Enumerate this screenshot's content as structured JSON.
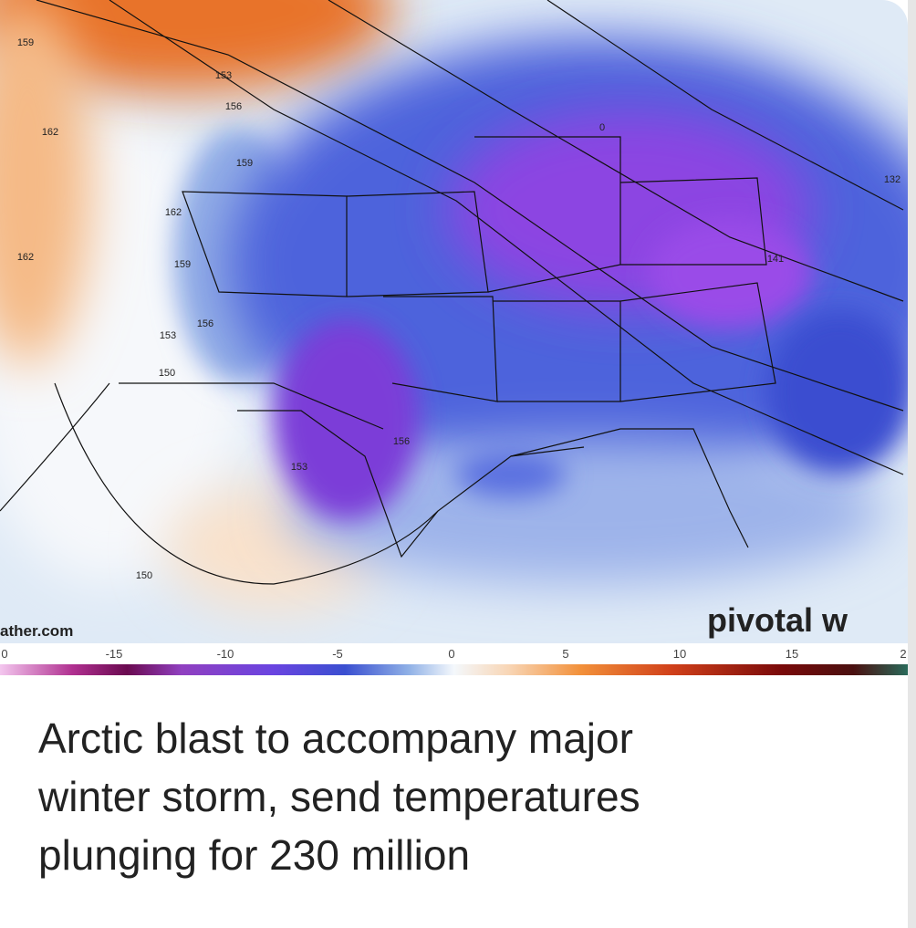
{
  "image": {
    "watermark_left": "ather.com",
    "watermark_right": "pivotal w",
    "colorbar_labels": [
      "0",
      "-15",
      "-10",
      "-5",
      "0",
      "5",
      "10",
      "15",
      "2"
    ],
    "contour_labels": [
      "159",
      "153",
      "156",
      "162",
      "159",
      "162",
      "162",
      "159",
      "156",
      "153",
      "150",
      "150",
      "156",
      "153",
      "141",
      "132",
      "0"
    ]
  },
  "article": {
    "headline_lines": [
      "Arctic blast to accompany major",
      "winter storm, send temperatures",
      "plunging for 230 million"
    ]
  }
}
